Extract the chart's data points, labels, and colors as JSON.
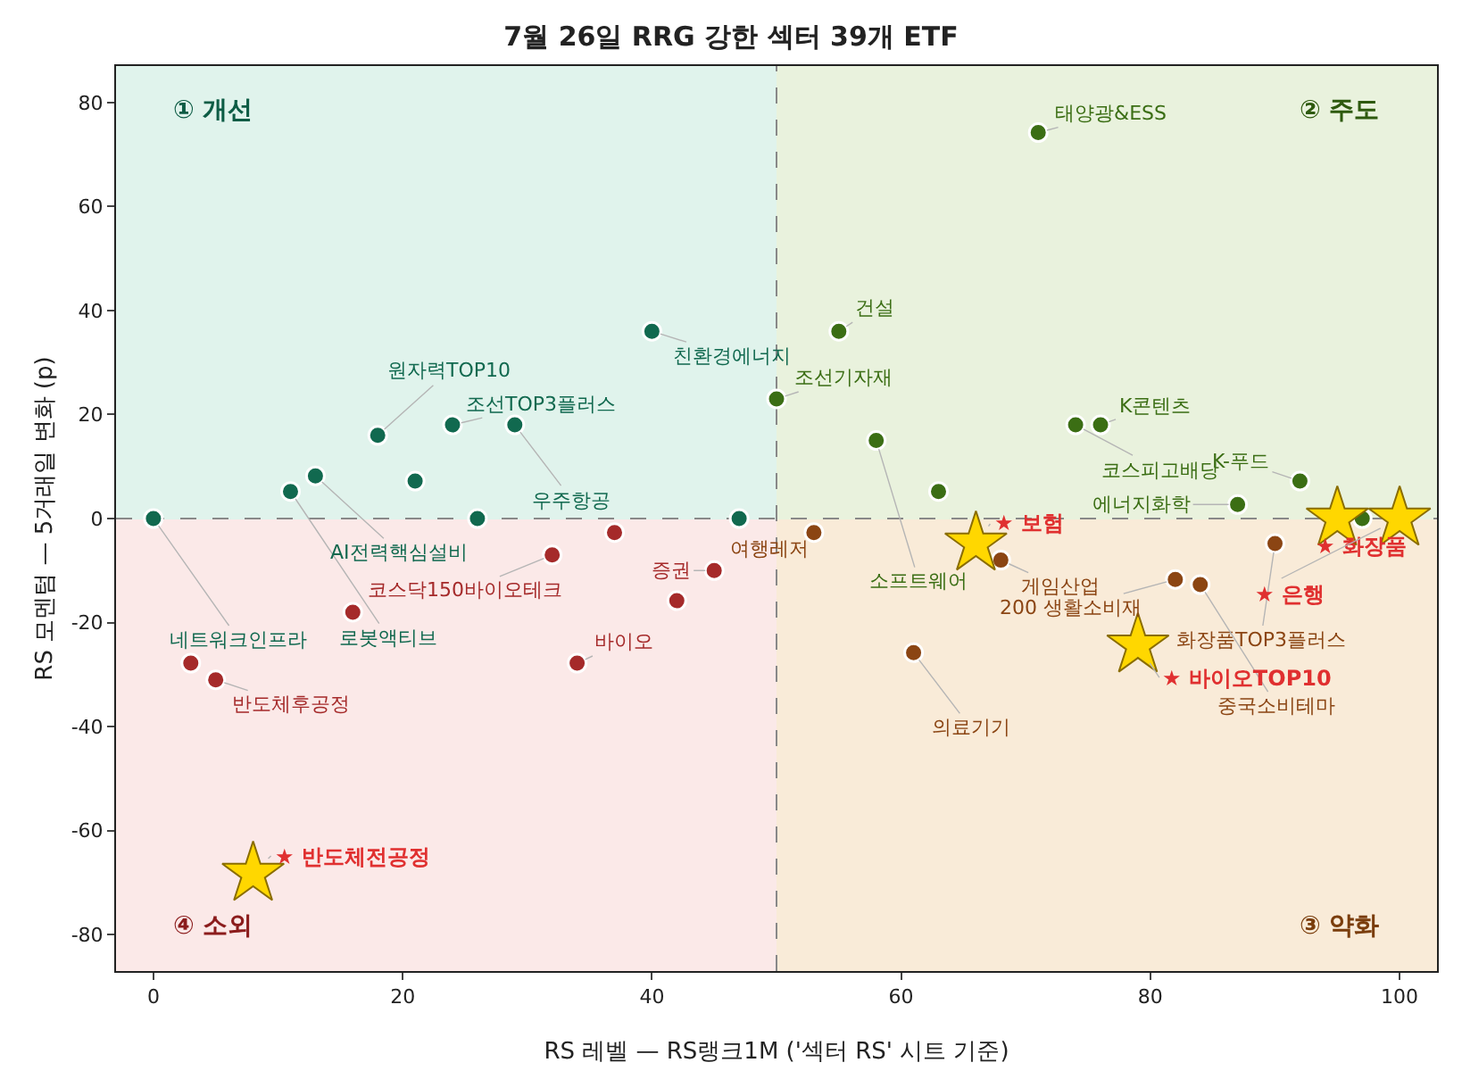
{
  "chart_data": {
    "type": "scatter",
    "title": "7월 26일 RRG 강한 섹터 39개 ETF",
    "xlabel": "RS 레벨 — RS랭크1M ('섹터 RS' 시트 기준)",
    "ylabel": "RS 모멘텀 — 5거래일 변화 (p)",
    "xlim": [
      -3,
      103
    ],
    "ylim": [
      -87,
      87
    ],
    "xticks": [
      0,
      20,
      40,
      60,
      80,
      100
    ],
    "yticks": [
      -80,
      -60,
      -40,
      -20,
      0,
      20,
      40,
      60,
      80
    ],
    "series": [
      {
        "color": "#11694f",
        "marker": "circle",
        "x": [
          0,
          11,
          13,
          18,
          21,
          24,
          29,
          26,
          40,
          47
        ],
        "values": [
          0,
          5.2,
          8.2,
          16,
          7.2,
          18,
          18,
          0,
          36,
          0
        ]
      },
      {
        "color": "#3b6e14",
        "marker": "circle",
        "x": [
          71,
          55,
          50,
          58,
          63,
          74,
          76,
          87,
          92,
          97
        ],
        "values": [
          74.2,
          36,
          23,
          15,
          5.2,
          18,
          18,
          2.7,
          7.2,
          0
        ]
      },
      {
        "color": "#8b4513",
        "marker": "circle",
        "x": [
          53,
          68,
          61,
          82,
          84,
          90
        ],
        "values": [
          -2.7,
          -8,
          -25.8,
          -11.7,
          -12.7,
          -4.8
        ]
      },
      {
        "color": "#a52a2a",
        "marker": "circle",
        "x": [
          3,
          5,
          16,
          32,
          37,
          42,
          34,
          45
        ],
        "values": [
          -27.8,
          -31,
          -18,
          -7,
          -2.7,
          -15.8,
          -27.8,
          -10
        ]
      },
      {
        "color": "#ffd700",
        "marker": "star",
        "x": [
          66,
          79,
          95,
          100,
          8
        ],
        "values": [
          -4.8,
          -24.4,
          0,
          0,
          -68.3
        ]
      }
    ],
    "ref_lines": [
      {
        "axis": "x",
        "value": 50,
        "line_style": "dashed",
        "color": "#888888"
      },
      {
        "axis": "y",
        "value": 0,
        "line_style": "dashed",
        "color": "#888888"
      }
    ],
    "annotations": [
      "① 개선",
      "② 주도",
      "③ 약화",
      "④ 소외",
      {
        "text": "네트워크인프라",
        "x": 0,
        "y": 0
      },
      {
        "text": "로봇액티브",
        "x": 11,
        "y": 5.2
      },
      {
        "text": "AI전력핵심설비",
        "x": 13,
        "y": 8.2
      },
      {
        "text": "원자력TOP10",
        "x": 18,
        "y": 16
      },
      {
        "text": "조선TOP3플러스",
        "x": 24,
        "y": 18
      },
      {
        "text": "우주항공",
        "x": 29,
        "y": 18
      },
      {
        "text": "친환경에너지",
        "x": 40,
        "y": 36
      },
      {
        "text": "반도체후공정",
        "x": 5,
        "y": -31
      },
      {
        "text": "코스닥150바이오테크",
        "x": 32,
        "y": -7
      },
      {
        "text": "증권",
        "x": 45,
        "y": -10
      },
      {
        "text": "바이오",
        "x": 34,
        "y": -27.8
      },
      {
        "text": "여행레저",
        "x": 53,
        "y": -2.7
      },
      {
        "text": "태양광&ESS",
        "x": 71,
        "y": 74.2
      },
      {
        "text": "건설",
        "x": 55,
        "y": 36
      },
      {
        "text": "조선기자재",
        "x": 50,
        "y": 23
      },
      {
        "text": "소프트웨어",
        "x": 58,
        "y": 15
      },
      {
        "text": "K콘텐츠",
        "x": 76,
        "y": 18
      },
      {
        "text": "코스피고배당",
        "x": 74,
        "y": 18
      },
      {
        "text": "에너지화학",
        "x": 87,
        "y": 2.7
      },
      {
        "text": "K-푸드",
        "x": 92,
        "y": 7.2
      },
      {
        "text": "게임산업",
        "x": 68,
        "y": -8
      },
      {
        "text": "의료기기",
        "x": 61,
        "y": -25.8
      },
      {
        "text": "화장품TOP3플러스",
        "x": 90,
        "y": -4.8
      },
      {
        "text": "200 생활소비재",
        "x": 82,
        "y": -11.7
      },
      {
        "text": "중국소비테마",
        "x": 84,
        "y": -12.7
      },
      {
        "text": "★ 보험",
        "x": 66,
        "y": -4.8
      },
      {
        "text": "★ 바이오TOP10",
        "x": 79,
        "y": -24.4
      },
      {
        "text": "★ 화장품",
        "x": 95,
        "y": 0
      },
      {
        "text": "★ 은행",
        "x": 100,
        "y": 0
      },
      {
        "text": "★ 반도체전공정",
        "x": 8,
        "y": -68.3
      }
    ]
  }
}
